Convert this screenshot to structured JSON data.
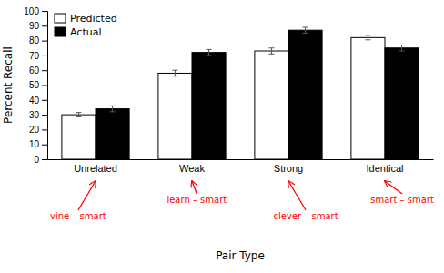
{
  "chart_data": {
    "type": "bar",
    "categories": [
      "Unrelated",
      "Weak",
      "Strong",
      "Identical"
    ],
    "series": [
      {
        "name": "Predicted",
        "color": "#ffffff",
        "values": [
          30,
          58,
          73,
          82
        ],
        "errors": [
          1.5,
          2.0,
          2.0,
          1.5
        ]
      },
      {
        "name": "Actual",
        "color": "#000000",
        "values": [
          34,
          72,
          87,
          75
        ],
        "errors": [
          2.0,
          2.0,
          2.0,
          2.0
        ]
      }
    ],
    "xlabel": "Pair Type",
    "ylabel": "Percent Recall",
    "ylim": [
      0,
      100
    ],
    "yticks": [
      0,
      10,
      20,
      30,
      40,
      50,
      60,
      70,
      80,
      90,
      100
    ],
    "legend": "upper left",
    "grid": false,
    "annotations": [
      {
        "text": "vine – smart",
        "category": "Unrelated",
        "color": "red"
      },
      {
        "text": "learn – smart",
        "category": "Weak",
        "color": "red"
      },
      {
        "text": "clever – smart",
        "category": "Strong",
        "color": "red"
      },
      {
        "text": "smart – smart",
        "category": "Identical",
        "color": "red"
      }
    ]
  }
}
